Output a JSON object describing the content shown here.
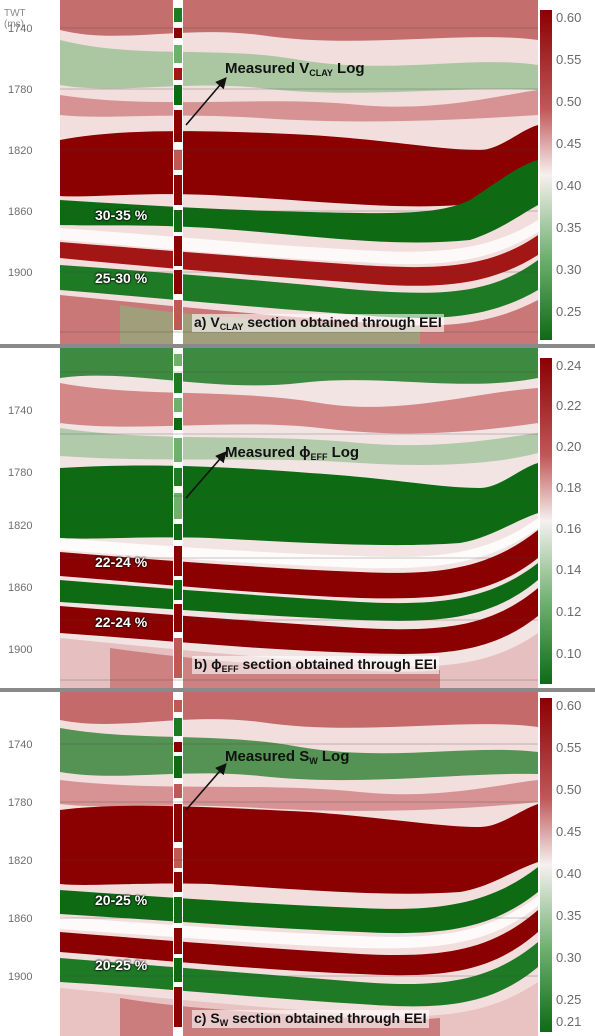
{
  "axis": {
    "title_line1": "TWT",
    "title_line2": "(ms)",
    "ticks": [
      "1740",
      "1780",
      "1820",
      "1860",
      "1900"
    ]
  },
  "colors": {
    "red": "#8b0000",
    "mid_red": "#c05858",
    "white": "#f7f0f0",
    "mid_green": "#6fb06f",
    "green": "#0e6b14"
  },
  "panels": [
    {
      "id": "a",
      "log_label_main": "Measured V",
      "log_label_sub": "CLAY",
      "log_label_tail": " Log",
      "caption_pre": "a) V",
      "caption_sub": "CLAY",
      "caption_post": " section obtained through EEI",
      "pct1": "30-35 %",
      "pct2": "25-30 %",
      "colorbar": [
        "0.60",
        "0.55",
        "0.50",
        "0.45",
        "0.40",
        "0.35",
        "0.30",
        "0.25"
      ]
    },
    {
      "id": "b",
      "log_label_main": "Measured ϕ",
      "log_label_sub": "EFF",
      "log_label_tail": "  Log",
      "caption_pre": "b) ϕ",
      "caption_sub": "EFF",
      "caption_post": " section obtained through EEI",
      "pct1": "22-24 %",
      "pct2": "22-24 %",
      "colorbar": [
        "0.24",
        "0.22",
        "0.20",
        "0.18",
        "0.16",
        "0.14",
        "0.12",
        "0.10"
      ]
    },
    {
      "id": "c",
      "log_label_main": "Measured S",
      "log_label_sub": "W",
      "log_label_tail": " Log",
      "caption_pre": "c) S",
      "caption_sub": "W",
      "caption_post": " section obtained through EEI",
      "pct1": "20-25 %",
      "pct2": "20-25 %",
      "colorbar": [
        "0.60",
        "0.55",
        "0.50",
        "0.45",
        "0.40",
        "0.35",
        "0.30",
        "0.25",
        "0.21"
      ]
    }
  ]
}
